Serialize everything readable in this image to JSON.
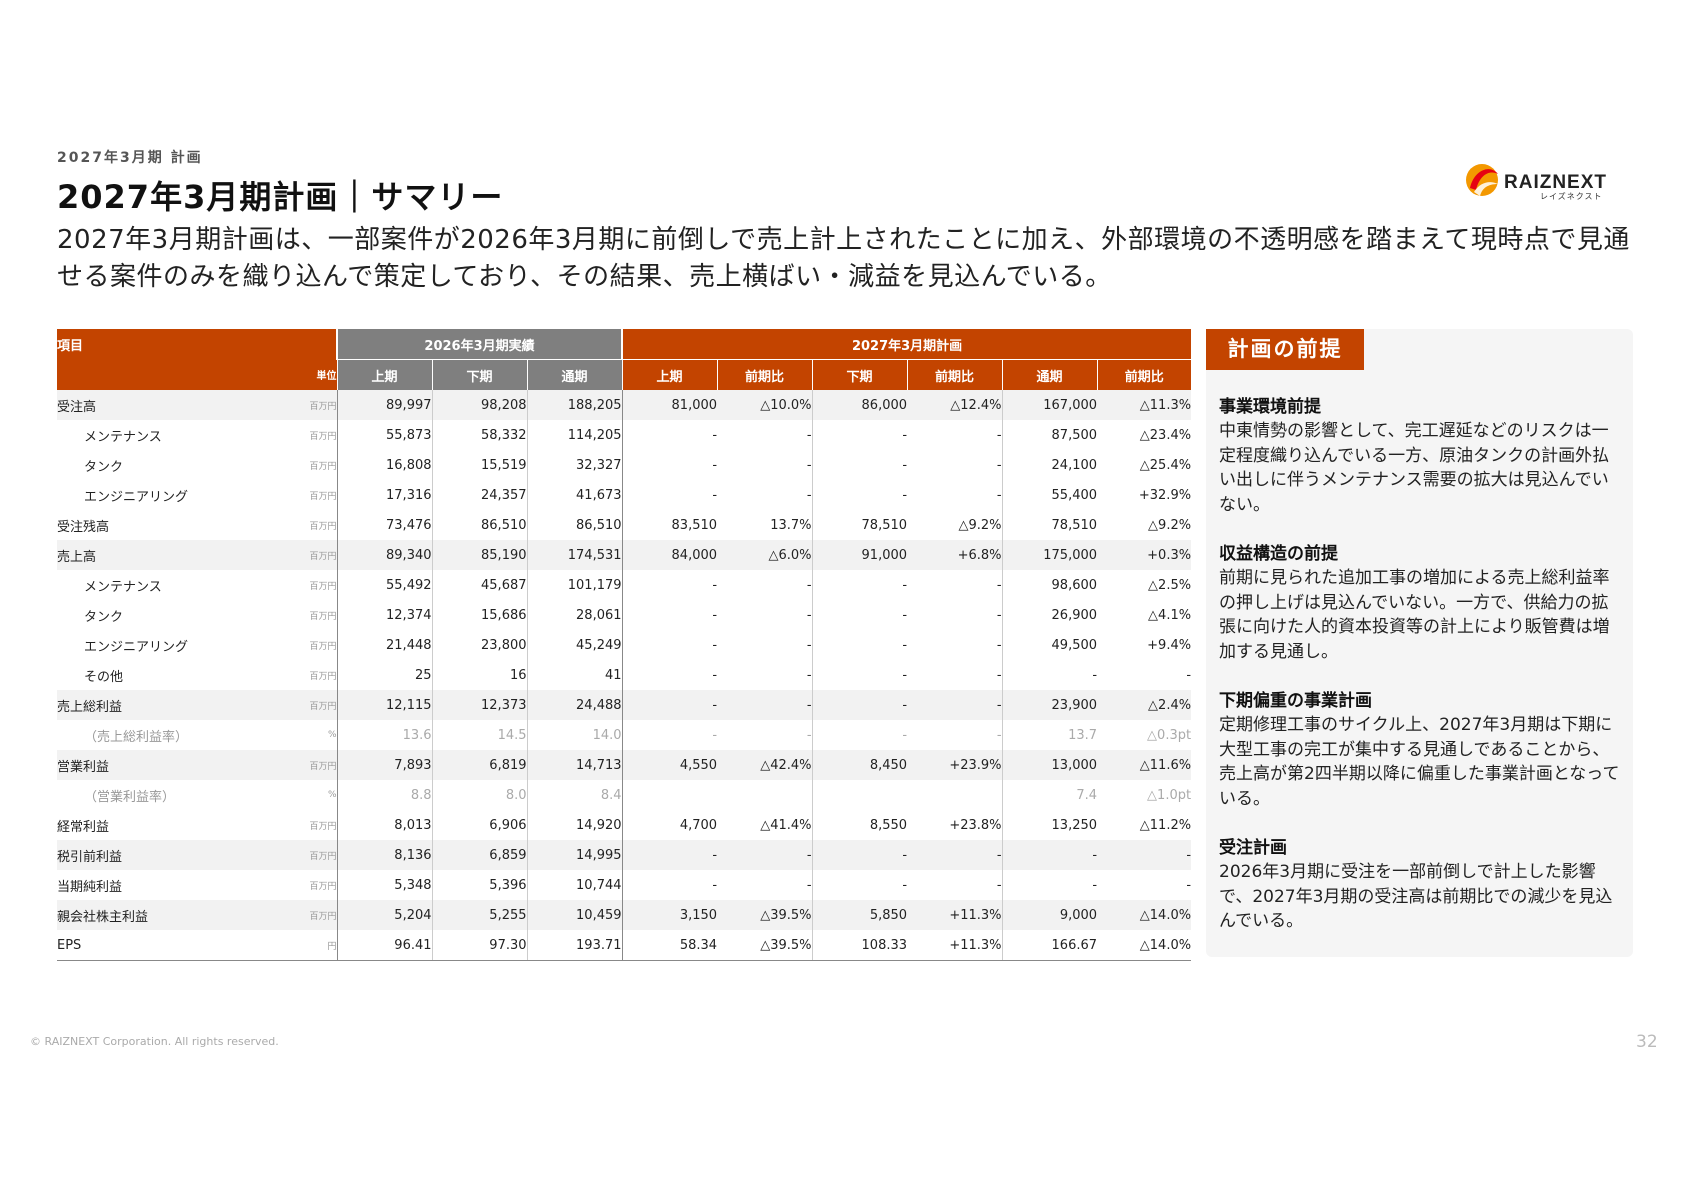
{
  "breadcrumb": "2027年3月期 計画",
  "title": "2027年3月期計画｜サマリー",
  "lead": "2027年3月期計画は、一部案件が2026年3月期に前倒しで売上計上されたことに加え、外部環境の不透明感を踏まえて現時点で見通せる案件のみを織り込んで策定しており、その結果、売上横ばい・減益を見込んでいる。",
  "logo": {
    "name": "RAIZNEXT",
    "sub": "レイズネクスト",
    "colors": [
      "#e60012",
      "#f39800"
    ]
  },
  "table": {
    "header": {
      "item": "項目",
      "unit": "単位",
      "actual_group": "2026年3月期実績",
      "plan_group": "2027年3月期計画",
      "actual_cols": [
        "上期",
        "下期",
        "通期"
      ],
      "plan_cols": [
        "上期",
        "前期比",
        "下期",
        "前期比",
        "通期",
        "前期比"
      ]
    },
    "rows": [
      {
        "label": "受注高",
        "unit": "百万円",
        "values": [
          "89,997",
          "98,208",
          "188,205",
          "81,000",
          "△10.0%",
          "86,000",
          "△12.4%",
          "167,000",
          "△11.3%"
        ]
      },
      {
        "label": "メンテナンス",
        "unit": "百万円",
        "values": [
          "55,873",
          "58,332",
          "114,205",
          "-",
          "-",
          "-",
          "-",
          "87,500",
          "△23.4%"
        ]
      },
      {
        "label": "タンク",
        "unit": "百万円",
        "values": [
          "16,808",
          "15,519",
          "32,327",
          "-",
          "-",
          "-",
          "-",
          "24,100",
          "△25.4%"
        ]
      },
      {
        "label": "エンジニアリング",
        "unit": "百万円",
        "values": [
          "17,316",
          "24,357",
          "41,673",
          "-",
          "-",
          "-",
          "-",
          "55,400",
          "+32.9%"
        ]
      },
      {
        "label": "受注残高",
        "unit": "百万円",
        "values": [
          "73,476",
          "86,510",
          "86,510",
          "83,510",
          "13.7%",
          "78,510",
          "△9.2%",
          "78,510",
          "△9.2%"
        ]
      },
      {
        "label": "売上高",
        "unit": "百万円",
        "values": [
          "89,340",
          "85,190",
          "174,531",
          "84,000",
          "△6.0%",
          "91,000",
          "+6.8%",
          "175,000",
          "+0.3%"
        ]
      },
      {
        "label": "メンテナンス",
        "unit": "百万円",
        "values": [
          "55,492",
          "45,687",
          "101,179",
          "-",
          "-",
          "-",
          "-",
          "98,600",
          "△2.5%"
        ]
      },
      {
        "label": "タンク",
        "unit": "百万円",
        "values": [
          "12,374",
          "15,686",
          "28,061",
          "-",
          "-",
          "-",
          "-",
          "26,900",
          "△4.1%"
        ]
      },
      {
        "label": "エンジニアリング",
        "unit": "百万円",
        "values": [
          "21,448",
          "23,800",
          "45,249",
          "-",
          "-",
          "-",
          "-",
          "49,500",
          "+9.4%"
        ]
      },
      {
        "label": "その他",
        "unit": "百万円",
        "values": [
          "25",
          "16",
          "41",
          "-",
          "-",
          "-",
          "-",
          "-",
          "-"
        ]
      },
      {
        "label": "売上総利益",
        "unit": "百万円",
        "values": [
          "12,115",
          "12,373",
          "24,488",
          "-",
          "-",
          "-",
          "-",
          "23,900",
          "△2.4%"
        ]
      },
      {
        "label": "（売上総利益率）",
        "unit": "%",
        "values": [
          "13.6",
          "14.5",
          "14.0",
          "-",
          "-",
          "-",
          "-",
          "13.7",
          "△0.3pt"
        ]
      },
      {
        "label": "営業利益",
        "unit": "百万円",
        "values": [
          "7,893",
          "6,819",
          "14,713",
          "4,550",
          "△42.4%",
          "8,450",
          "+23.9%",
          "13,000",
          "△11.6%"
        ]
      },
      {
        "label": "（営業利益率）",
        "unit": "%",
        "values": [
          "8.8",
          "8.0",
          "8.4",
          "",
          "",
          "",
          "",
          "7.4",
          "△1.0pt"
        ]
      },
      {
        "label": "経常利益",
        "unit": "百万円",
        "values": [
          "8,013",
          "6,906",
          "14,920",
          "4,700",
          "△41.4%",
          "8,550",
          "+23.8%",
          "13,250",
          "△11.2%"
        ]
      },
      {
        "label": "税引前利益",
        "unit": "百万円",
        "values": [
          "8,136",
          "6,859",
          "14,995",
          "-",
          "-",
          "-",
          "-",
          "-",
          "-"
        ]
      },
      {
        "label": "当期純利益",
        "unit": "百万円",
        "values": [
          "5,348",
          "5,396",
          "10,744",
          "-",
          "-",
          "-",
          "-",
          "-",
          "-"
        ]
      },
      {
        "label": "親会社株主利益",
        "unit": "百万円",
        "values": [
          "5,204",
          "5,255",
          "10,459",
          "3,150",
          "△39.5%",
          "5,850",
          "+11.3%",
          "9,000",
          "△14.0%"
        ]
      },
      {
        "label": "EPS",
        "unit": "円",
        "values": [
          "96.41",
          "97.30",
          "193.71",
          "58.34",
          "△39.5%",
          "108.33",
          "+11.3%",
          "166.67",
          "△14.0%"
        ]
      }
    ]
  },
  "premise": {
    "tag": "計画の前提",
    "sections": [
      {
        "heading": "事業環境前提",
        "body": "中東情勢の影響として、完工遅延などのリスクは一定程度織り込んでいる一方、原油タンクの計画外払い出しに伴うメンテナンス需要の拡大は見込んでいない。"
      },
      {
        "heading": "収益構造の前提",
        "body": "前期に見られた追加工事の増加による売上総利益率の押し上げは見込んでいない。一方で、供給力の拡張に向けた人的資本投資等の計上により販管費は増加する見通し。"
      },
      {
        "heading": "下期偏重の事業計画",
        "body": "定期修理工事のサイクル上、2027年3月期は下期に大型工事の完工が集中する見通しであることから、売上高が第2四半期以降に偏重した事業計画となっている。"
      },
      {
        "heading": "受注計画",
        "body": "2026年3月期に受注を一部前倒しで計上した影響で、2027年3月期の受注高は前期比での減少を見込んでいる。"
      }
    ]
  },
  "footer": "© RAIZNEXT Corporation. All rights reserved.",
  "page_number": "32",
  "colors": {
    "accent": "#c34400",
    "actual_header": "#7f7f7f",
    "shade": "#f2f2f2"
  }
}
